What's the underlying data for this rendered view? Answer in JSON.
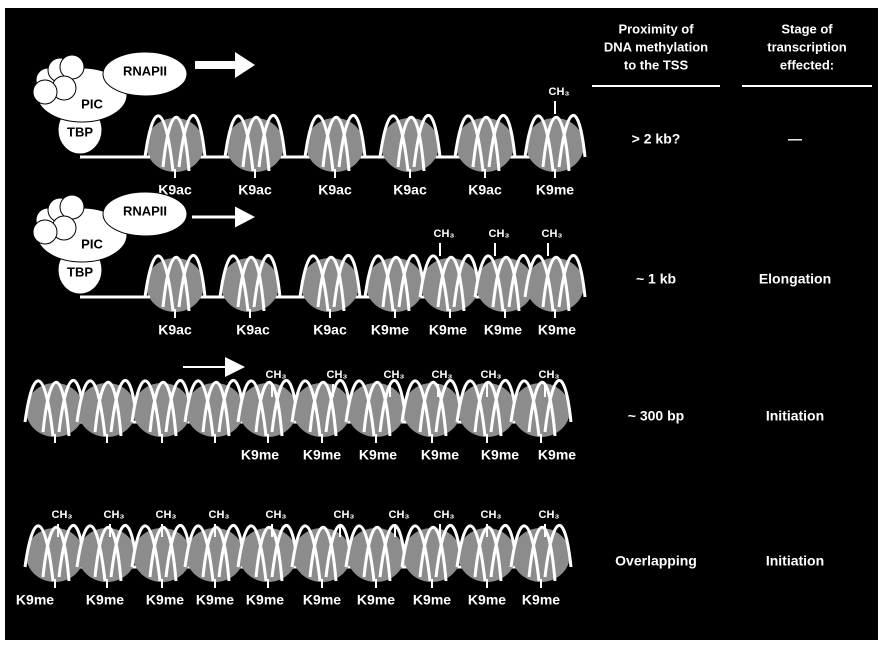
{
  "columns": {
    "proximity": [
      "Proximity of",
      "DNA methylation",
      "to the TSS"
    ],
    "stage": [
      "Stage of",
      "transcription",
      "effected:"
    ]
  },
  "rows": [
    {
      "complex": [
        "RNAPII",
        "PIC",
        "TBP"
      ],
      "methyl_labels": [
        "CH₃"
      ],
      "histone_labels": [
        "K9ac",
        "K9ac",
        "K9ac",
        "K9ac",
        "K9ac",
        "K9me"
      ],
      "proximity": "> 2 kb?",
      "stage": "—"
    },
    {
      "complex": [
        "RNAPII",
        "PIC",
        "TBP"
      ],
      "methyl_labels": [
        "CH₃",
        "CH₃",
        "CH₃"
      ],
      "histone_labels": [
        "K9ac",
        "K9ac",
        "K9ac",
        "K9me",
        "K9me",
        "K9me",
        "K9me"
      ],
      "proximity": "~ 1 kb",
      "stage": "Elongation"
    },
    {
      "methyl_labels": [
        "CH₃",
        "CH₃",
        "CH₃",
        "CH₃",
        "CH₃",
        "CH₃"
      ],
      "histone_labels": [
        "K9me",
        "K9me",
        "K9me",
        "K9me",
        "K9me",
        "K9me"
      ],
      "proximity": "~ 300 bp",
      "stage": "Initiation"
    },
    {
      "methyl_labels": [
        "CH₃",
        "CH₃",
        "CH₃",
        "CH₃",
        "CH₃",
        "CH₃",
        "CH₃",
        "CH₃",
        "CH₃",
        "CH₃"
      ],
      "histone_labels": [
        "K9me",
        "K9me",
        "K9me",
        "K9me",
        "K9me",
        "K9me",
        "K9me",
        "K9me",
        "K9me",
        "K9me"
      ],
      "proximity": "Overlapping",
      "stage": "Initiation"
    }
  ]
}
